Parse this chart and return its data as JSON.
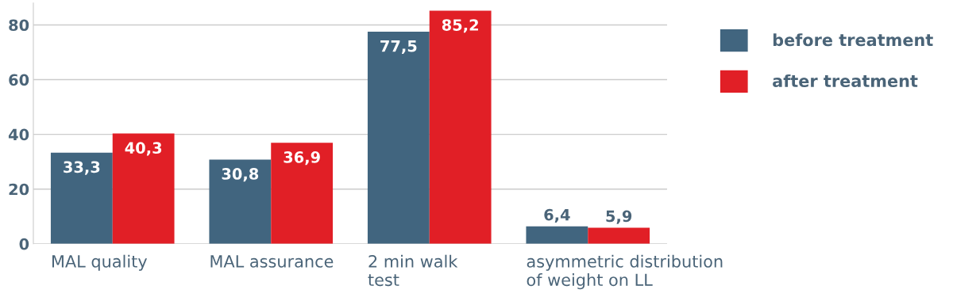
{
  "chart_data": {
    "type": "bar",
    "categories": [
      "MAL quality",
      "MAL assurance",
      "2 min walk\ntest",
      "asymmetric distribution\nof weight on LL"
    ],
    "series": [
      {
        "name": "before treatment",
        "color": "#41657f",
        "values": [
          33.3,
          30.8,
          77.5,
          6.4
        ],
        "value_labels": [
          "33,3",
          "30,8",
          "77,5",
          "6,4"
        ]
      },
      {
        "name": "after treatment",
        "color": "#e11f26",
        "values": [
          40.3,
          36.9,
          85.2,
          5.9
        ],
        "value_labels": [
          "40,3",
          "36,9",
          "85,2",
          "5,9"
        ]
      }
    ],
    "ylim": [
      0,
      88
    ],
    "yticks": [
      0,
      20,
      40,
      60,
      80
    ],
    "grid": "y",
    "legend": "top right"
  }
}
